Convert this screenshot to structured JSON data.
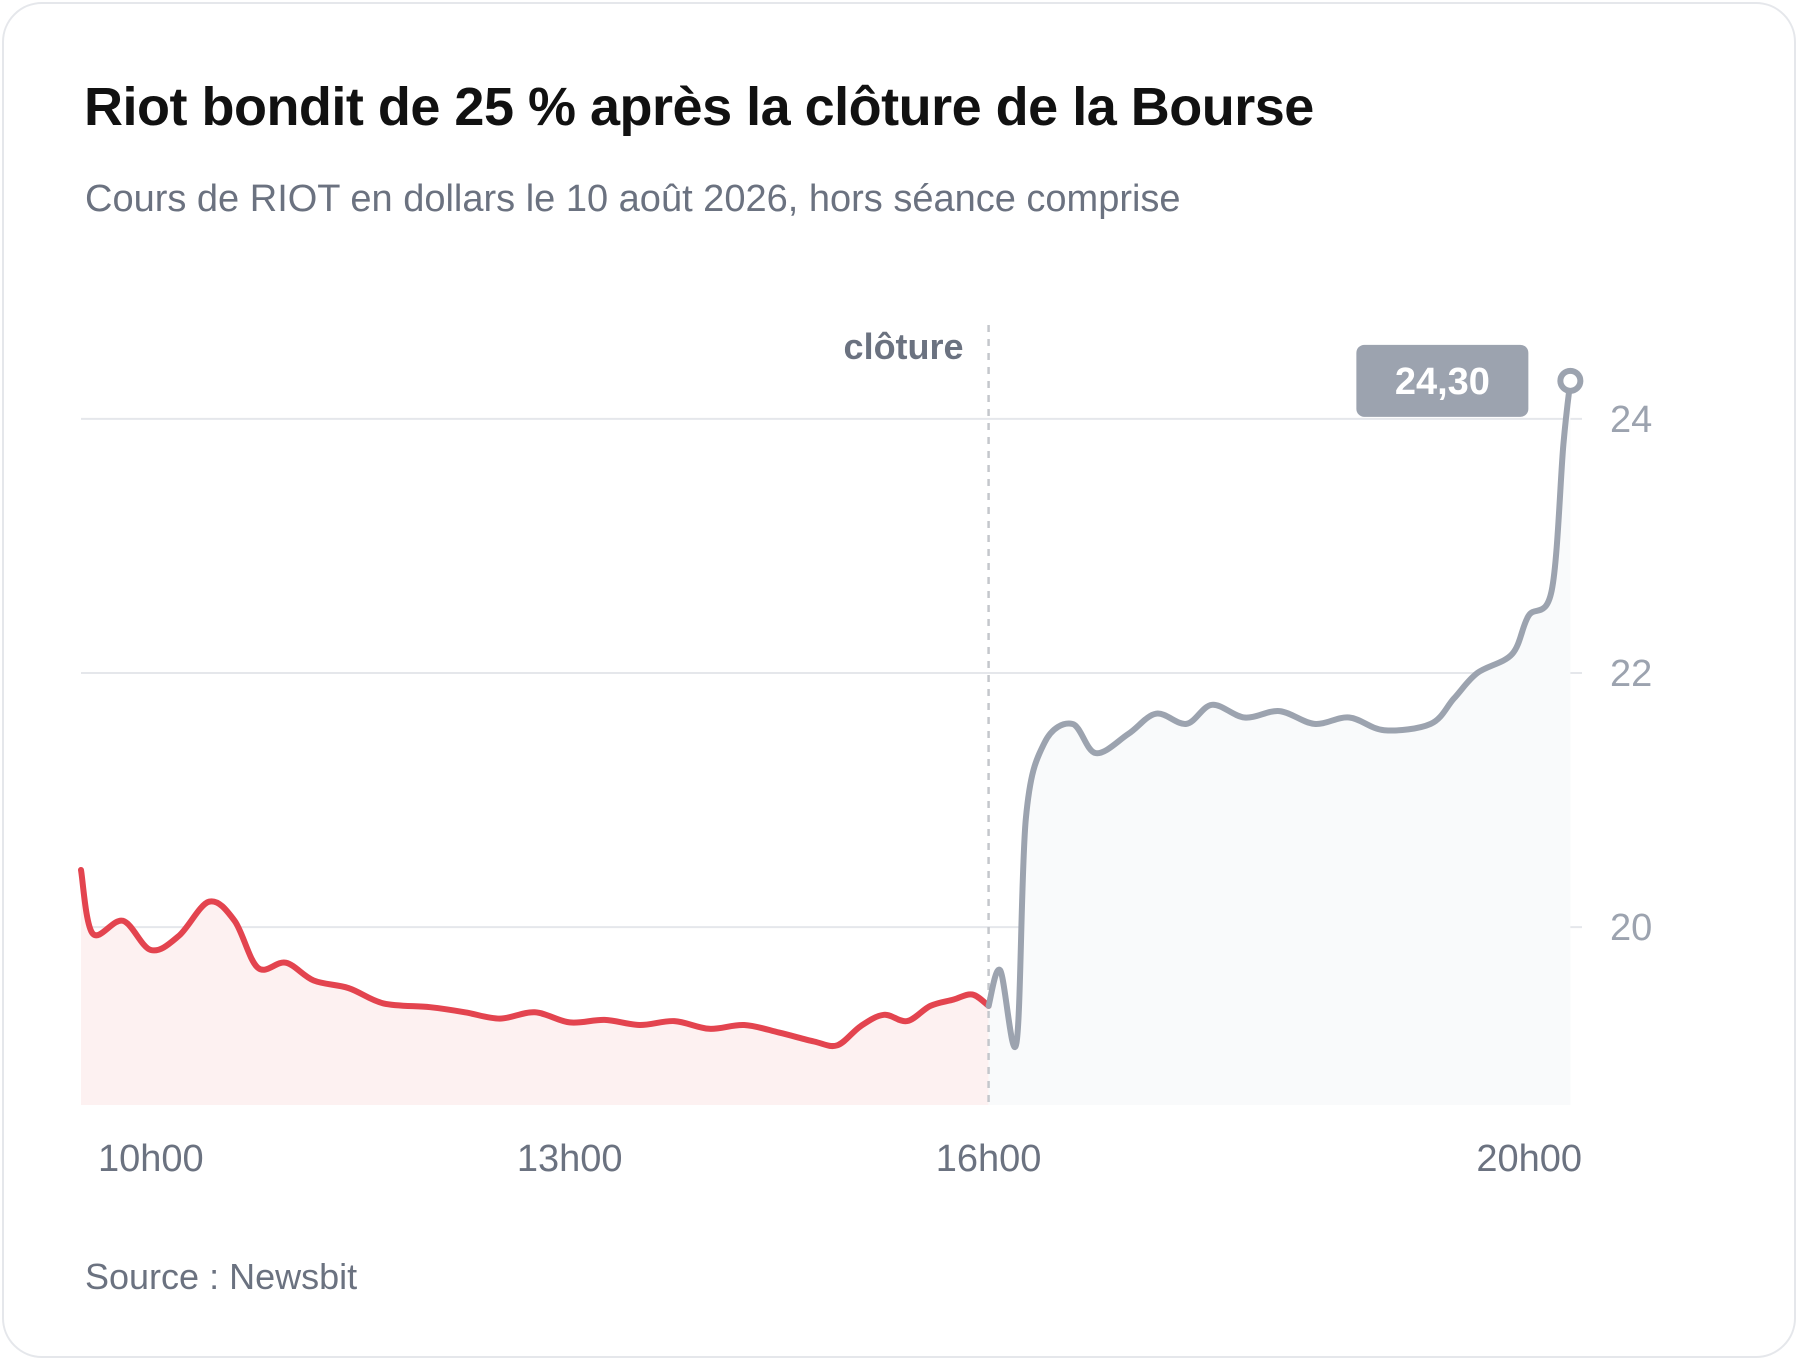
{
  "title": "Riot bondit de 25 % après la clôture de la Bourse",
  "subtitle": "Cours de RIOT en dollars le 10 août 2026, hors séance comprise",
  "source": "Source : Newsbit",
  "colors": {
    "regular_line": "#e3444f",
    "regular_fill": "#fdf1f1",
    "after_line": "#9ca3af",
    "after_fill": "#f9fafb",
    "grid": "#e5e7eb",
    "badge_bg": "#9ca3af"
  },
  "chart_data": {
    "type": "line",
    "title": "Riot bondit de 25 % après la clôture de la Bourse",
    "subtitle": "Cours de RIOT en dollars le 10 août 2026, hors séance comprise",
    "xlabel": "",
    "ylabel": "",
    "x_range": [
      "09:30",
      "20:15"
    ],
    "ylim": [
      18.6,
      24.7
    ],
    "y_ticks": [
      20,
      22,
      24
    ],
    "y_tick_labels": [
      "20",
      "22",
      "24"
    ],
    "x_ticks": [
      "10:00",
      "13:00",
      "16:00",
      "20:00"
    ],
    "x_tick_labels": [
      "10h00",
      "13h00",
      "16h00",
      "20h00"
    ],
    "grid": true,
    "y_axis_side": "right",
    "series": [
      {
        "segment": "regular",
        "points": [
          [
            "09:30",
            20.45
          ],
          [
            "09:35",
            19.95
          ],
          [
            "09:48",
            20.05
          ],
          [
            "10:00",
            19.82
          ],
          [
            "10:12",
            19.93
          ],
          [
            "10:25",
            20.2
          ],
          [
            "10:36",
            20.05
          ],
          [
            "10:46",
            19.68
          ],
          [
            "10:58",
            19.72
          ],
          [
            "11:10",
            19.58
          ],
          [
            "11:25",
            19.52
          ],
          [
            "11:40",
            19.4
          ],
          [
            "12:00",
            19.37
          ],
          [
            "12:15",
            19.33
          ],
          [
            "12:30",
            19.28
          ],
          [
            "12:45",
            19.33
          ],
          [
            "13:00",
            19.25
          ],
          [
            "13:15",
            19.27
          ],
          [
            "13:30",
            19.23
          ],
          [
            "13:45",
            19.26
          ],
          [
            "14:00",
            19.2
          ],
          [
            "14:15",
            19.23
          ],
          [
            "14:30",
            19.17
          ],
          [
            "14:45",
            19.1
          ],
          [
            "14:55",
            19.07
          ],
          [
            "15:05",
            19.22
          ],
          [
            "15:15",
            19.31
          ],
          [
            "15:25",
            19.26
          ],
          [
            "15:35",
            19.38
          ],
          [
            "15:45",
            19.43
          ],
          [
            "15:53",
            19.47
          ],
          [
            "16:00",
            19.38
          ]
        ]
      },
      {
        "segment": "after_hours",
        "points": [
          [
            "16:00",
            19.38
          ],
          [
            "16:05",
            19.66
          ],
          [
            "16:12",
            19.09
          ],
          [
            "16:16",
            20.85
          ],
          [
            "16:24",
            21.45
          ],
          [
            "16:36",
            21.6
          ],
          [
            "16:46",
            21.37
          ],
          [
            "17:00",
            21.52
          ],
          [
            "17:12",
            21.68
          ],
          [
            "17:25",
            21.6
          ],
          [
            "17:36",
            21.75
          ],
          [
            "17:50",
            21.65
          ],
          [
            "18:05",
            21.7
          ],
          [
            "18:20",
            21.6
          ],
          [
            "18:35",
            21.65
          ],
          [
            "18:50",
            21.55
          ],
          [
            "19:10",
            21.6
          ],
          [
            "19:20",
            21.8
          ],
          [
            "19:30",
            22.0
          ],
          [
            "19:45",
            22.15
          ],
          [
            "19:52",
            22.45
          ],
          [
            "20:02",
            22.65
          ],
          [
            "20:07",
            23.8
          ],
          [
            "20:10",
            24.3
          ]
        ]
      }
    ],
    "annotations": [
      {
        "type": "vline",
        "x": "16:00",
        "label": "clôture"
      },
      {
        "type": "end_label",
        "x": "20:10",
        "y": 24.3,
        "label": "24,30"
      }
    ]
  }
}
